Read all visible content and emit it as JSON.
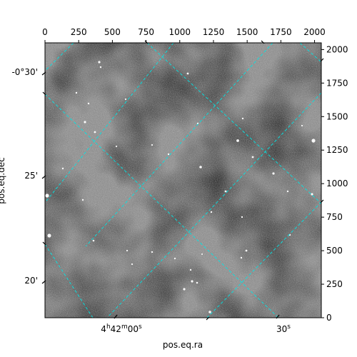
{
  "chart_data": {
    "type": "image",
    "title": "",
    "image": {
      "colormap": "gray",
      "pixel_axes": {
        "x": {
          "ticks": [
            0,
            250,
            500,
            750,
            1000,
            1250,
            1500,
            1750,
            2000
          ],
          "range": [
            0,
            2050
          ]
        },
        "y": {
          "ticks": [
            0,
            250,
            500,
            750,
            1000,
            1250,
            1500,
            1750,
            2000
          ],
          "range": [
            0,
            2050
          ]
        }
      }
    },
    "world_axes": {
      "x": {
        "label": "pos.eq.ra",
        "ticks": [
          "4h42m00s",
          "30s"
        ]
      },
      "y": {
        "label": "pos.eq.dec",
        "ticks": [
          "-0°30'",
          "25'",
          "20'"
        ]
      }
    },
    "grid": {
      "on": true,
      "color": "#00e5e5",
      "style": "dashed"
    }
  }
}
